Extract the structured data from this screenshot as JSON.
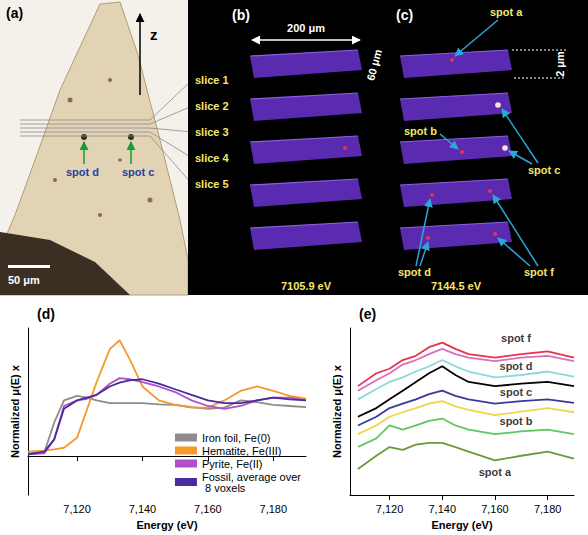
{
  "figure": {
    "panel_a": {
      "letter": "(a)",
      "axis": "z",
      "slices": [
        "slice 1",
        "slice 2",
        "slice 3",
        "slice 4",
        "slice 5"
      ],
      "spots": [
        "spot d",
        "spot c"
      ],
      "scale_bar": "50 μm"
    },
    "panel_b": {
      "letter": "(b)",
      "width": "200 μm",
      "depth": "60 μm",
      "energy": "7105.9 eV"
    },
    "panel_c": {
      "letter": "(c)",
      "thickness": "2 μm",
      "energy": "7144.5 eV",
      "spots": [
        "spot a",
        "spot b",
        "spot c",
        "spot d",
        "spot f"
      ]
    }
  },
  "chart_data": [
    {
      "type": "line",
      "title": "(d)",
      "xlabel": "Energy (eV)",
      "ylabel": "Normalized μ(E) x",
      "x": [
        7105,
        7110,
        7113,
        7116,
        7120,
        7123,
        7126,
        7130,
        7133,
        7136,
        7140,
        7145,
        7150,
        7155,
        7160,
        7165,
        7170,
        7175,
        7180,
        7185,
        7190
      ],
      "series": [
        {
          "name": "Iron foil, Fe(0)",
          "color": "#8c8c8c",
          "values": [
            0.05,
            0.07,
            0.6,
            1.0,
            1.08,
            1.05,
            1.0,
            0.95,
            0.95,
            0.95,
            0.95,
            0.93,
            0.92,
            0.88,
            0.85,
            0.87,
            1.0,
            0.97,
            0.92,
            0.9,
            0.88
          ]
        },
        {
          "name": "Hematite, Fe(III)",
          "color": "#f39a2b",
          "values": [
            0.08,
            0.1,
            0.12,
            0.15,
            0.33,
            0.83,
            1.33,
            1.92,
            2.08,
            1.75,
            1.25,
            1.0,
            0.92,
            0.87,
            0.87,
            1.0,
            1.17,
            1.25,
            1.17,
            1.08,
            1.03
          ]
        },
        {
          "name": "Pyrite, Fe(II)",
          "color": "#b04fc8",
          "values": [
            0.03,
            0.05,
            0.3,
            0.9,
            1.0,
            1.03,
            1.1,
            1.3,
            1.4,
            1.38,
            1.33,
            1.25,
            1.15,
            1.0,
            0.9,
            0.85,
            0.9,
            1.0,
            1.05,
            1.05,
            1.0
          ]
        },
        {
          "name": "Fossil, average over 8 voxels",
          "color": "#4b2a9e",
          "values": [
            0.03,
            0.08,
            0.3,
            0.85,
            1.0,
            1.05,
            1.1,
            1.25,
            1.32,
            1.36,
            1.38,
            1.3,
            1.2,
            1.1,
            1.0,
            0.95,
            0.95,
            1.0,
            1.05,
            1.02,
            1.0
          ]
        }
      ],
      "xlim": [
        7105,
        7190
      ],
      "xticks": [
        7120,
        7140,
        7160,
        7180
      ],
      "ylim": [
        -0.7,
        2.3
      ],
      "tick_labels": "x",
      "grid": false,
      "legend": "lower right"
    },
    {
      "type": "line",
      "title": "(e)",
      "xlabel": "Energy (eV)",
      "ylabel": "Normalized μ(E) x",
      "x": [
        7108,
        7115,
        7120,
        7125,
        7130,
        7135,
        7140,
        7145,
        7150,
        7160,
        7170,
        7180,
        7190
      ],
      "series": [
        {
          "color": "#e8334b",
          "values": [
            3.13,
            3.5,
            3.63,
            3.88,
            4.0,
            4.25,
            4.38,
            4.2,
            4.05,
            3.95,
            4.05,
            4.13,
            3.95
          ]
        },
        {
          "color": "#d86fc0",
          "values": [
            3.0,
            3.3,
            3.5,
            3.75,
            3.88,
            4.05,
            4.2,
            4.05,
            3.95,
            3.85,
            3.95,
            4.0,
            3.85
          ]
        },
        {
          "color": "#8ed8d8",
          "values": [
            2.75,
            3.05,
            3.25,
            3.38,
            3.55,
            3.7,
            3.88,
            3.7,
            3.55,
            3.38,
            3.45,
            3.55,
            3.4
          ]
        },
        {
          "color": "#000000",
          "values": [
            2.25,
            2.5,
            2.75,
            3.0,
            3.25,
            3.5,
            3.7,
            3.45,
            3.25,
            3.13,
            3.2,
            3.25,
            3.13
          ]
        },
        {
          "color": "#3a3a9a",
          "values": [
            2.0,
            2.25,
            2.5,
            2.63,
            2.75,
            2.9,
            3.0,
            2.85,
            2.75,
            2.63,
            2.7,
            2.75,
            2.65
          ]
        },
        {
          "color": "#f2d44a",
          "values": [
            1.75,
            2.0,
            2.25,
            2.38,
            2.5,
            2.63,
            2.7,
            2.55,
            2.45,
            2.3,
            2.4,
            2.5,
            2.38
          ]
        },
        {
          "color": "#5fc75f",
          "values": [
            1.38,
            1.63,
            2.0,
            1.88,
            2.0,
            2.13,
            2.2,
            2.0,
            1.88,
            1.75,
            1.83,
            1.88,
            1.75
          ]
        },
        {
          "color": "#6b9a3a",
          "values": [
            0.75,
            1.13,
            1.38,
            1.3,
            1.45,
            1.5,
            1.5,
            1.38,
            1.25,
            1.0,
            1.13,
            1.25,
            1.05
          ]
        }
      ],
      "annotations": [
        {
          "text": "spot f",
          "x": 7168,
          "y": 4.5
        },
        {
          "text": "spot d",
          "x": 7168,
          "y": 3.72
        },
        {
          "text": "spot c",
          "x": 7168,
          "y": 2.95
        },
        {
          "text": "spot b",
          "x": 7168,
          "y": 2.12
        },
        {
          "text": "spot a",
          "x": 7160,
          "y": 0.65
        }
      ],
      "xlim": [
        7105,
        7190
      ],
      "xticks": [
        7120,
        7140,
        7160,
        7180
      ],
      "ylim": [
        0,
        4.8
      ],
      "tick_labels": "x",
      "grid": false
    }
  ]
}
